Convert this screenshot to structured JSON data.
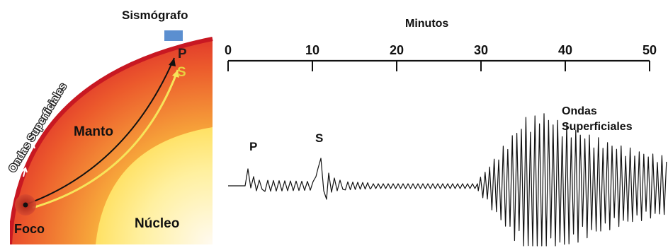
{
  "earth_section": {
    "station_label": "Sismógrafo",
    "surface_waves_label": "Ondas Superficiales",
    "mantle_label": "Manto",
    "core_label": "Núcleo",
    "focus_label": "Foco",
    "p_label": "P",
    "s_label": "S",
    "colors": {
      "crust_edge": "#d8202a",
      "mantle_outer": "#e8402a",
      "mantle_inner": "#f6a63a",
      "core": "#ffe066",
      "core_center": "#fff6c8",
      "station": "#5b8fd0",
      "p_path": "#111111",
      "s_path": "#f7e45a"
    }
  },
  "seismogram": {
    "axis_title": "Minutos",
    "ticks": [
      "0",
      "10",
      "20",
      "30",
      "40",
      "50"
    ],
    "p_label": "P",
    "s_label": "S",
    "surface_label_line1": "Ondas",
    "surface_label_line2": "Superficiales"
  }
}
